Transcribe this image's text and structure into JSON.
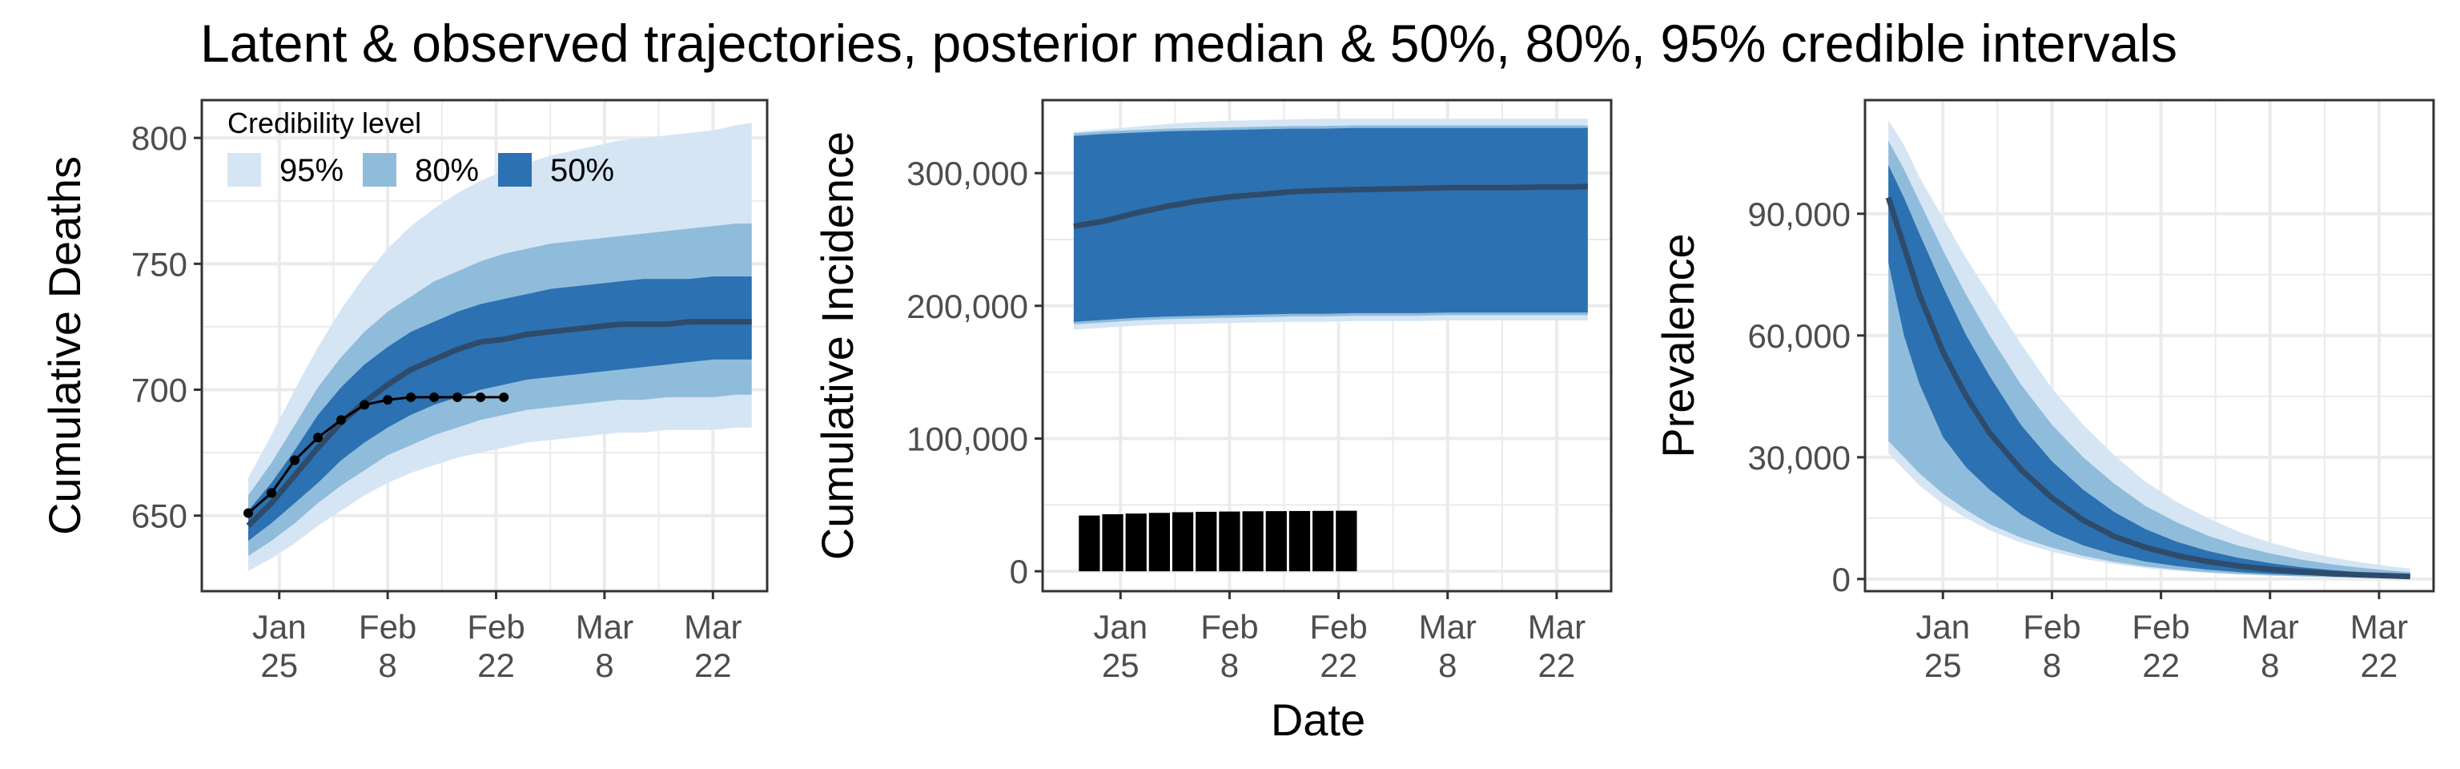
{
  "title": "Latent & observed trajectories, posterior median & 50%, 80%, 95% credible intervals",
  "shared_xlabel": "Date",
  "colors": {
    "band95": "#d6e5f4",
    "band80": "#90bcdb",
    "band50": "#2c71b1",
    "median": "#2e4b6b",
    "observed": "#000000",
    "grid": "#ebebeb",
    "panel_border": "#333333"
  },
  "legend": {
    "title": "Credibility level",
    "items": [
      {
        "label": "95%",
        "color": "#d6e5f4"
      },
      {
        "label": "80%",
        "color": "#90bcdb"
      },
      {
        "label": "50%",
        "color": "#2c71b1"
      }
    ]
  },
  "chart_data": [
    {
      "type": "area",
      "panel": "deaths",
      "ylabel": "Cumulative Deaths",
      "x_type": "date",
      "xlim": [
        "2021-01-15",
        "2021-03-29"
      ],
      "ylim": [
        620,
        815
      ],
      "x_ticks": [
        {
          "date": "2021-01-25",
          "label": [
            "Jan",
            "25"
          ]
        },
        {
          "date": "2021-02-08",
          "label": [
            "Feb",
            "8"
          ]
        },
        {
          "date": "2021-02-22",
          "label": [
            "Feb",
            "22"
          ]
        },
        {
          "date": "2021-03-08",
          "label": [
            "Mar",
            "8"
          ]
        },
        {
          "date": "2021-03-22",
          "label": [
            "Mar",
            "22"
          ]
        }
      ],
      "y_ticks": [
        {
          "value": 650,
          "label": "650"
        },
        {
          "value": 700,
          "label": "700"
        },
        {
          "value": 750,
          "label": "750"
        },
        {
          "value": 800,
          "label": "800"
        }
      ],
      "dates": [
        "2021-01-21",
        "2021-01-24",
        "2021-01-27",
        "2021-01-30",
        "2021-02-02",
        "2021-02-05",
        "2021-02-08",
        "2021-02-11",
        "2021-02-14",
        "2021-02-17",
        "2021-02-20",
        "2021-02-23",
        "2021-02-26",
        "2021-03-01",
        "2021-03-04",
        "2021-03-07",
        "2021-03-10",
        "2021-03-13",
        "2021-03-16",
        "2021-03-19",
        "2021-03-22",
        "2021-03-25",
        "2021-03-27"
      ],
      "median": [
        646,
        655,
        666,
        677,
        687,
        695,
        702,
        708,
        712,
        716,
        719,
        720,
        722,
        723,
        724,
        725,
        726,
        726,
        726,
        727,
        727,
        727,
        727
      ],
      "lo50": [
        640,
        647,
        655,
        663,
        672,
        679,
        685,
        690,
        694,
        697,
        700,
        702,
        704,
        705,
        706,
        707,
        708,
        709,
        710,
        711,
        712,
        712,
        712
      ],
      "hi50": [
        652,
        663,
        676,
        690,
        701,
        710,
        717,
        723,
        727,
        731,
        734,
        736,
        738,
        740,
        741,
        742,
        743,
        744,
        744,
        744,
        745,
        745,
        745
      ],
      "lo80": [
        634,
        640,
        647,
        655,
        662,
        668,
        674,
        678,
        682,
        685,
        688,
        690,
        692,
        693,
        694,
        695,
        696,
        696,
        697,
        697,
        697,
        698,
        698
      ],
      "hi80": [
        658,
        671,
        686,
        701,
        713,
        723,
        731,
        737,
        743,
        747,
        751,
        754,
        756,
        758,
        759,
        760,
        761,
        762,
        763,
        764,
        765,
        766,
        766
      ],
      "lo95": [
        628,
        633,
        639,
        646,
        652,
        658,
        663,
        667,
        670,
        673,
        675,
        677,
        679,
        680,
        681,
        682,
        683,
        683,
        684,
        684,
        684,
        685,
        685
      ],
      "hi95": [
        665,
        682,
        700,
        717,
        732,
        745,
        756,
        765,
        772,
        778,
        783,
        787,
        790,
        793,
        795,
        797,
        799,
        800,
        801,
        802,
        803,
        805,
        806
      ],
      "observed": {
        "dates": [
          "2021-01-21",
          "2021-01-24",
          "2021-01-27",
          "2021-01-30",
          "2021-02-02",
          "2021-02-05",
          "2021-02-08",
          "2021-02-11",
          "2021-02-14",
          "2021-02-17",
          "2021-02-20",
          "2021-02-23"
        ],
        "values": [
          651,
          659,
          672,
          681,
          688,
          694,
          696,
          697,
          697,
          697,
          697,
          697
        ]
      }
    },
    {
      "type": "area",
      "panel": "incidence",
      "ylabel": "Cumulative Incidence",
      "x_type": "date",
      "xlim": [
        "2021-01-15",
        "2021-03-29"
      ],
      "ylim": [
        -15000,
        355000
      ],
      "x_ticks": [
        {
          "date": "2021-01-25",
          "label": [
            "Jan",
            "25"
          ]
        },
        {
          "date": "2021-02-08",
          "label": [
            "Feb",
            "8"
          ]
        },
        {
          "date": "2021-02-22",
          "label": [
            "Feb",
            "22"
          ]
        },
        {
          "date": "2021-03-08",
          "label": [
            "Mar",
            "8"
          ]
        },
        {
          "date": "2021-03-22",
          "label": [
            "Mar",
            "22"
          ]
        }
      ],
      "y_ticks": [
        {
          "value": 0,
          "label": "0"
        },
        {
          "value": 100000,
          "label": "100,000"
        },
        {
          "value": 200000,
          "label": "200,000"
        },
        {
          "value": 300000,
          "label": "300,000"
        }
      ],
      "dates": [
        "2021-01-19",
        "2021-01-23",
        "2021-01-27",
        "2021-01-31",
        "2021-02-04",
        "2021-02-08",
        "2021-02-12",
        "2021-02-16",
        "2021-02-20",
        "2021-02-24",
        "2021-02-28",
        "2021-03-04",
        "2021-03-08",
        "2021-03-12",
        "2021-03-16",
        "2021-03-20",
        "2021-03-24",
        "2021-03-26"
      ],
      "median": [
        260000,
        264000,
        270000,
        275000,
        279000,
        282000,
        284000,
        286000,
        287000,
        287500,
        288000,
        288500,
        289000,
        289000,
        289000,
        289500,
        289500,
        290000
      ],
      "lo50": [
        188000,
        189500,
        191000,
        192000,
        192500,
        193000,
        193500,
        194000,
        194000,
        194500,
        194500,
        194500,
        195000,
        195000,
        195000,
        195000,
        195000,
        195000
      ],
      "hi50": [
        328000,
        329500,
        330500,
        331500,
        332000,
        332500,
        333000,
        333500,
        333500,
        334000,
        334000,
        334000,
        334000,
        334000,
        334000,
        334000,
        334000,
        334000
      ],
      "lo80": [
        186000,
        187500,
        189000,
        190000,
        190500,
        191000,
        191500,
        192000,
        192000,
        192500,
        192500,
        192500,
        193000,
        193000,
        193000,
        193000,
        193000,
        193000
      ],
      "hi80": [
        330000,
        331500,
        332500,
        333500,
        334000,
        334500,
        335000,
        335500,
        335500,
        336000,
        336000,
        336000,
        336000,
        336000,
        336000,
        336000,
        336000,
        336000
      ],
      "lo95": [
        182000,
        183500,
        185000,
        186000,
        186500,
        187000,
        187500,
        188000,
        188000,
        188500,
        188500,
        188500,
        189000,
        189000,
        189000,
        189000,
        189000,
        189000
      ],
      "hi95": [
        331000,
        333000,
        335000,
        337000,
        338500,
        339500,
        340000,
        340500,
        341000,
        341000,
        341000,
        341000,
        341000,
        341000,
        341000,
        341000,
        341000,
        341000
      ],
      "observed_bars": {
        "dates": [
          "2021-01-21",
          "2021-01-24",
          "2021-01-27",
          "2021-01-30",
          "2021-02-02",
          "2021-02-05",
          "2021-02-08",
          "2021-02-11",
          "2021-02-14",
          "2021-02-17",
          "2021-02-20",
          "2021-02-23"
        ],
        "values": [
          42000,
          43000,
          43500,
          44000,
          44500,
          44800,
          45000,
          45200,
          45300,
          45400,
          45500,
          45600
        ]
      }
    },
    {
      "type": "area",
      "panel": "prevalence",
      "ylabel": "Prevalence",
      "x_type": "date",
      "xlim": [
        "2021-01-15",
        "2021-03-29"
      ],
      "ylim": [
        -3000,
        118000
      ],
      "x_ticks": [
        {
          "date": "2021-01-25",
          "label": [
            "Jan",
            "25"
          ]
        },
        {
          "date": "2021-02-08",
          "label": [
            "Feb",
            "8"
          ]
        },
        {
          "date": "2021-02-22",
          "label": [
            "Feb",
            "22"
          ]
        },
        {
          "date": "2021-03-08",
          "label": [
            "Mar",
            "8"
          ]
        },
        {
          "date": "2021-03-22",
          "label": [
            "Mar",
            "22"
          ]
        }
      ],
      "y_ticks": [
        {
          "value": 0,
          "label": "0"
        },
        {
          "value": 30000,
          "label": "30,000"
        },
        {
          "value": 60000,
          "label": "60,000"
        },
        {
          "value": 90000,
          "label": "90,000"
        }
      ],
      "dates": [
        "2021-01-18",
        "2021-01-20",
        "2021-01-22",
        "2021-01-25",
        "2021-01-28",
        "2021-01-31",
        "2021-02-04",
        "2021-02-08",
        "2021-02-12",
        "2021-02-16",
        "2021-02-20",
        "2021-02-24",
        "2021-02-28",
        "2021-03-04",
        "2021-03-08",
        "2021-03-12",
        "2021-03-16",
        "2021-03-20",
        "2021-03-24",
        "2021-03-26"
      ],
      "median": [
        94000,
        82000,
        70000,
        56000,
        45000,
        36000,
        27000,
        20000,
        14500,
        10500,
        7800,
        5800,
        4300,
        3200,
        2400,
        1800,
        1300,
        1000,
        750,
        600
      ],
      "lo50": [
        78000,
        60000,
        48000,
        35000,
        27500,
        22000,
        16000,
        11500,
        8300,
        6000,
        4300,
        3200,
        2300,
        1700,
        1250,
        950,
        700,
        500,
        400,
        350
      ],
      "hi50": [
        102000,
        94000,
        85000,
        72000,
        60000,
        50000,
        38000,
        29000,
        22000,
        16500,
        12300,
        9200,
        6900,
        5200,
        3900,
        2900,
        2200,
        1600,
        1200,
        1000
      ],
      "lo80": [
        34000,
        30000,
        26000,
        21000,
        17000,
        13500,
        10200,
        7700,
        5700,
        4200,
        3100,
        2300,
        1700,
        1250,
        900,
        650,
        480,
        350,
        260,
        220
      ],
      "hi80": [
        108000,
        101000,
        93000,
        81000,
        70000,
        60000,
        48000,
        38000,
        30000,
        23500,
        18000,
        14000,
        10700,
        8200,
        6300,
        4800,
        3600,
        2700,
        2000,
        1700
      ],
      "lo95": [
        31000,
        27000,
        23000,
        18500,
        15000,
        12000,
        9000,
        6700,
        5000,
        3700,
        2700,
        2000,
        1500,
        1100,
        800,
        580,
        420,
        310,
        230,
        190
      ],
      "hi95": [
        113000,
        107000,
        99000,
        89000,
        79000,
        70000,
        58000,
        47000,
        38000,
        30500,
        24000,
        19000,
        15000,
        11600,
        9000,
        6900,
        5300,
        4000,
        3000,
        2600
      ]
    }
  ]
}
